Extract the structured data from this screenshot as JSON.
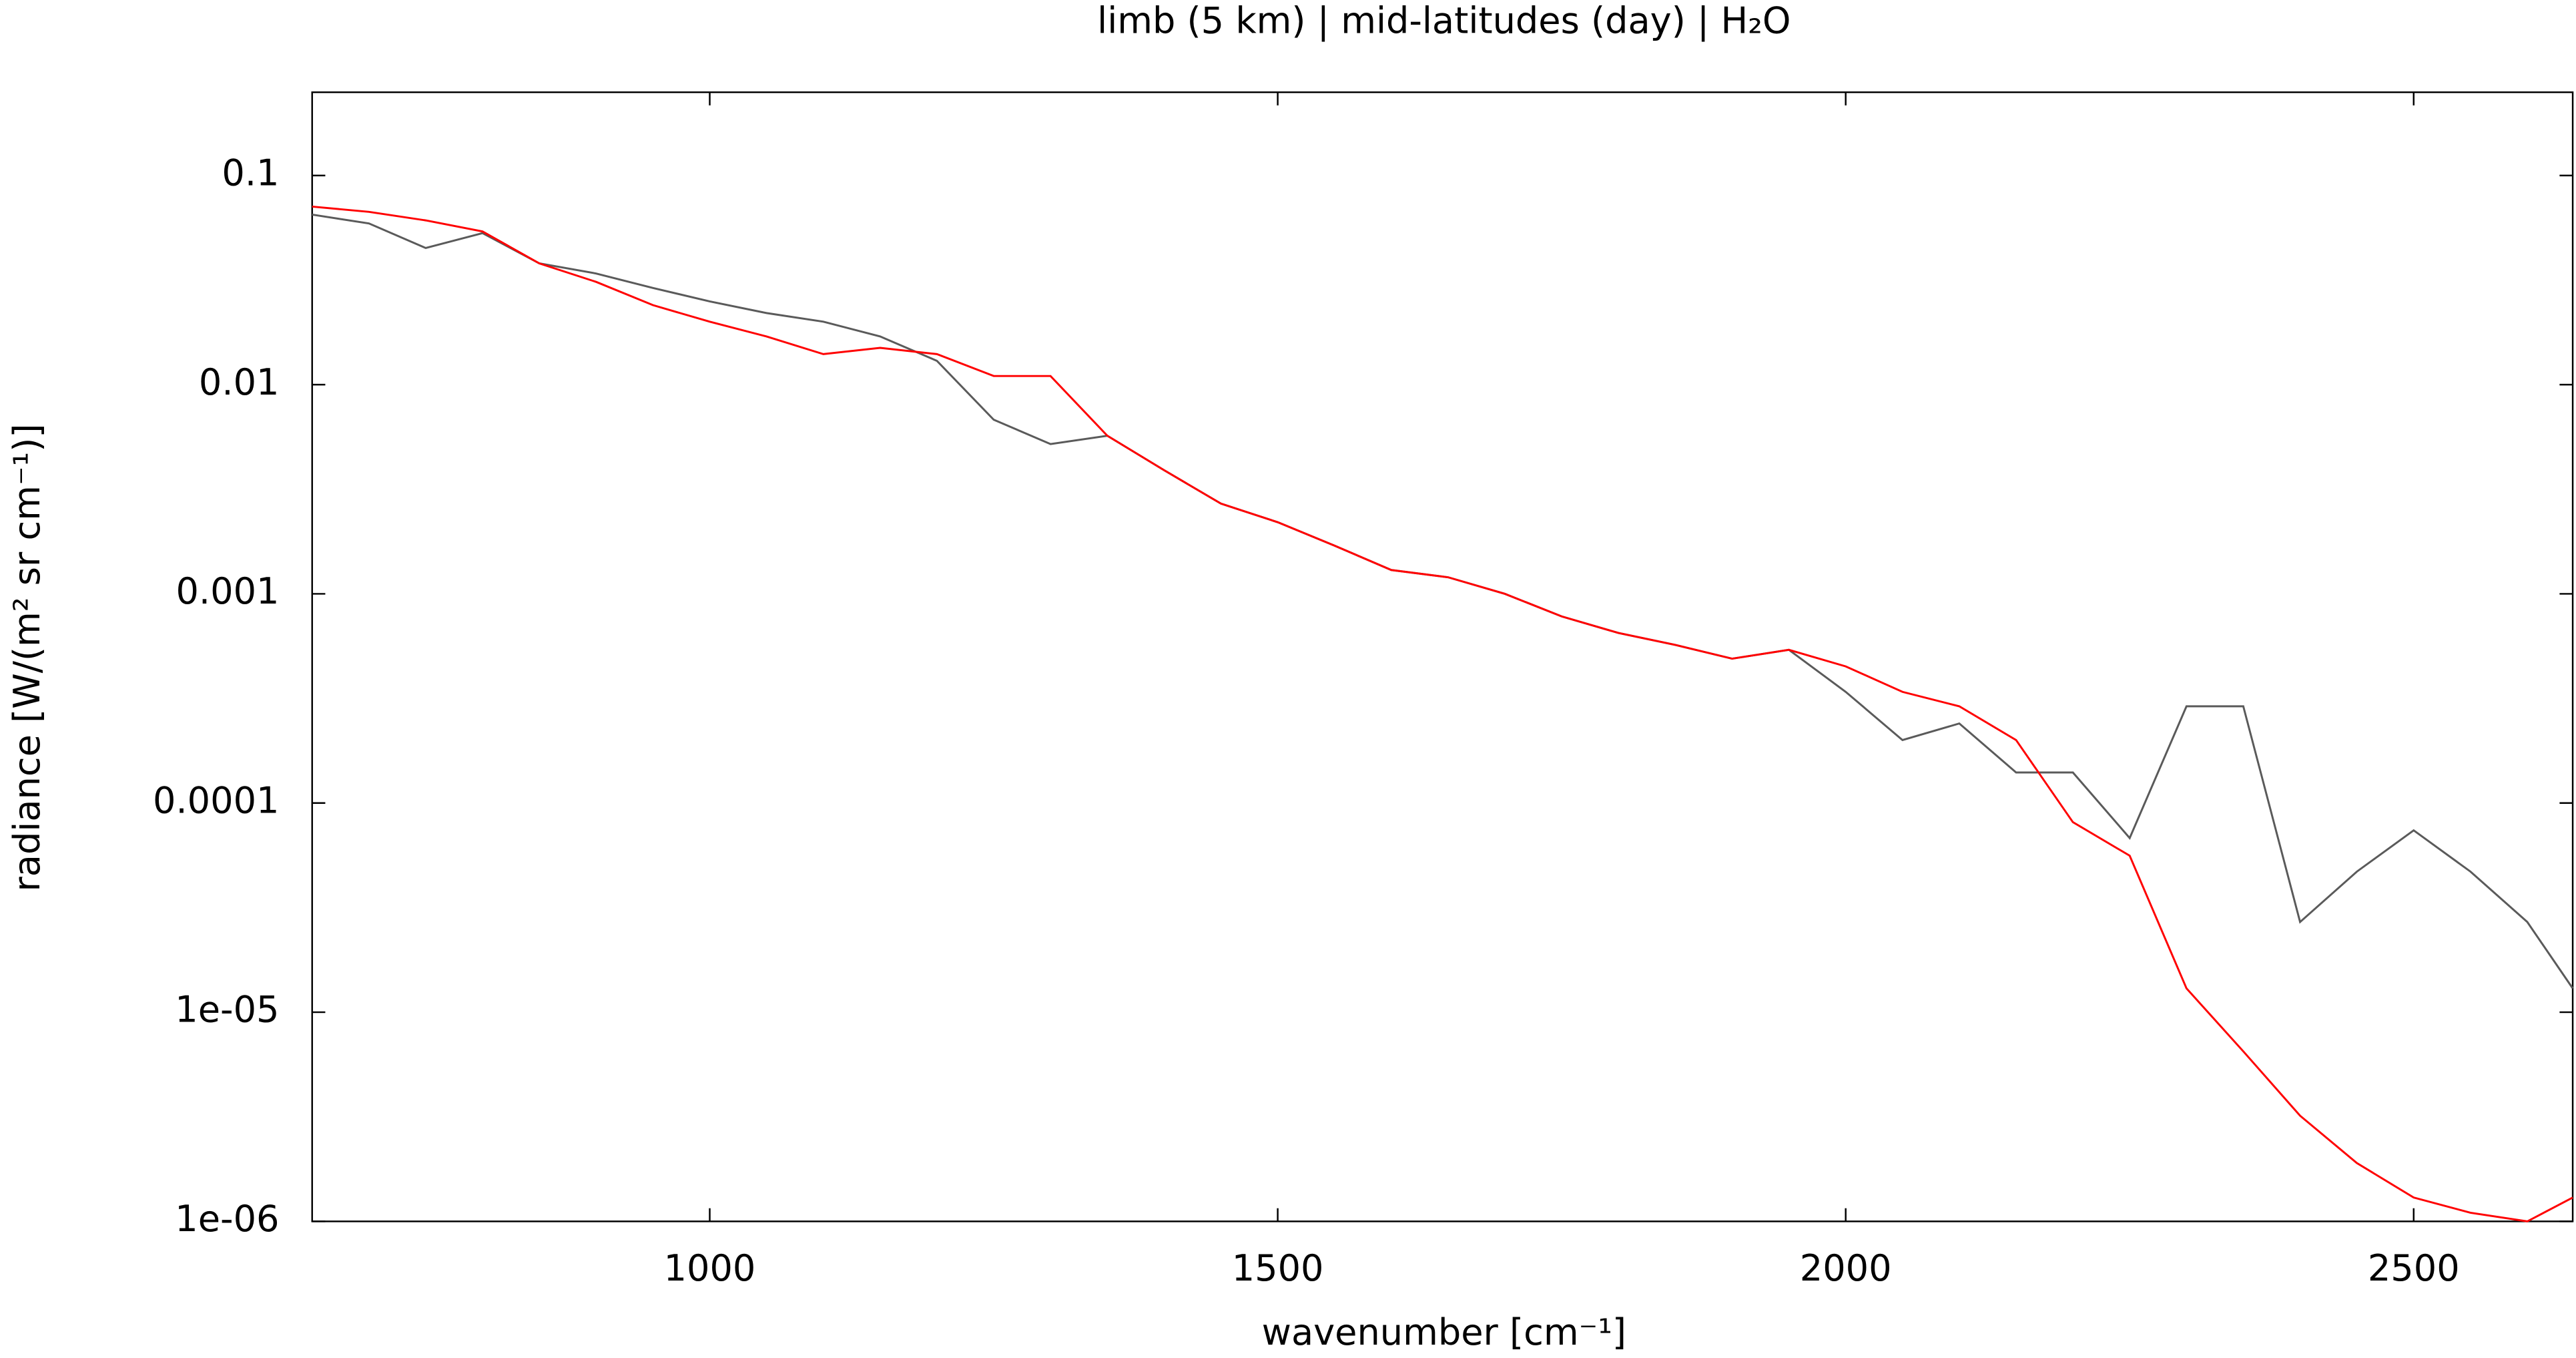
{
  "chart_data": {
    "type": "line",
    "title": "limb (5 km) | mid-latitudes (day) | H₂O",
    "xlabel": "wavenumber [cm⁻¹]",
    "ylabel": "radiance [W/(m² sr cm⁻¹)]",
    "log_y": true,
    "xlim": [
      650,
      2640
    ],
    "ylim": [
      1e-06,
      0.25
    ],
    "xticks": [
      1000,
      1500,
      2000,
      2500
    ],
    "yticks": [
      0.1,
      0.01,
      0.001,
      0.0001,
      {
        "value": 1e-05,
        "label": "1e-05"
      },
      {
        "value": 1e-06,
        "label": "1e-06"
      }
    ],
    "x": [
      650,
      700,
      750,
      800,
      850,
      900,
      950,
      1000,
      1050,
      1100,
      1150,
      1200,
      1250,
      1300,
      1350,
      1400,
      1450,
      1500,
      1550,
      1600,
      1650,
      1700,
      1750,
      1800,
      1850,
      1900,
      1950,
      2000,
      2050,
      2100,
      2150,
      2200,
      2250,
      2300,
      2350,
      2400,
      2450,
      2500,
      2550,
      2600,
      2640
    ],
    "series": [
      {
        "color": "#5a5a5a",
        "values": [
          0.065,
          0.059,
          0.045,
          0.053,
          0.038,
          0.034,
          0.029,
          0.025,
          0.022,
          0.02,
          0.017,
          0.013,
          0.0068,
          0.0052,
          0.0057,
          0.0039,
          0.0027,
          0.0022,
          0.0017,
          0.0013,
          0.0012,
          0.001,
          0.00078,
          0.00065,
          0.00057,
          0.00049,
          0.00054,
          0.00034,
          0.0002,
          0.00024,
          0.00014,
          0.00014,
          6.8e-05,
          0.00029,
          0.00029,
          2.7e-05,
          4.7e-05,
          7.4e-05,
          4.7e-05,
          2.7e-05,
          1.3e-05
        ]
      },
      {
        "color": "#ff0000",
        "values": [
          0.071,
          0.067,
          0.061,
          0.054,
          0.038,
          0.031,
          0.024,
          0.02,
          0.017,
          0.014,
          0.015,
          0.014,
          0.011,
          0.011,
          0.0057,
          0.0039,
          0.0027,
          0.0022,
          0.0017,
          0.0013,
          0.0012,
          0.001,
          0.00078,
          0.00065,
          0.00057,
          0.00049,
          0.00054,
          0.00045,
          0.00034,
          0.00029,
          0.0002,
          8.1e-05,
          5.6e-05,
          1.3e-05,
          6.5e-06,
          3.2e-06,
          1.9e-06,
          1.3e-06,
          1.1e-06,
          1e-06,
          1.3e-06
        ]
      }
    ]
  }
}
